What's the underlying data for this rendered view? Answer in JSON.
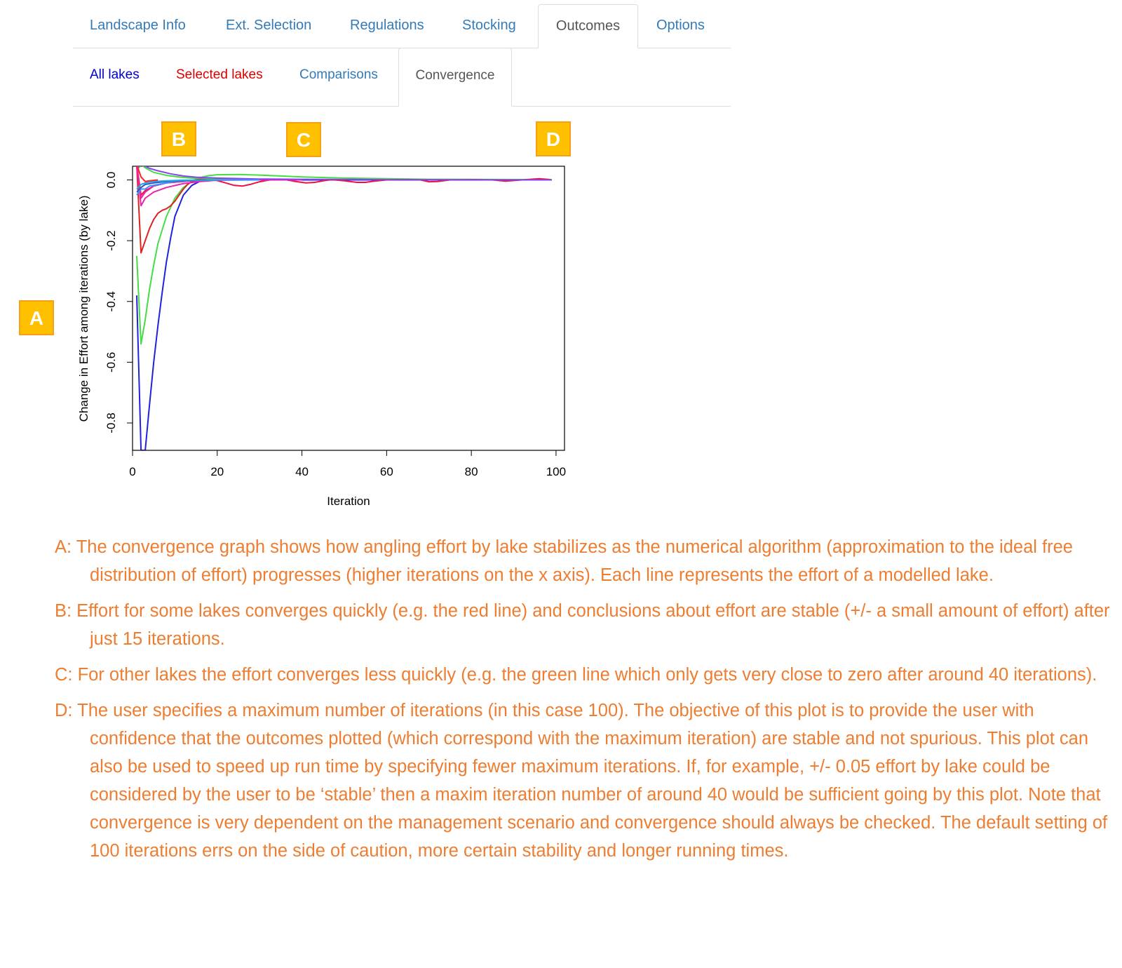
{
  "main_tabs": [
    {
      "label": "Landscape Info",
      "active": false
    },
    {
      "label": "Ext. Selection",
      "active": false
    },
    {
      "label": "Regulations",
      "active": false
    },
    {
      "label": "Stocking",
      "active": false
    },
    {
      "label": "Outcomes",
      "active": true
    },
    {
      "label": "Options",
      "active": false
    }
  ],
  "sub_tabs": [
    {
      "label": "All lakes",
      "active": false,
      "color": "#0000cc"
    },
    {
      "label": "Selected lakes",
      "active": false,
      "color": "#dd0000"
    },
    {
      "label": "Comparisons",
      "active": false,
      "color": "#337ab7"
    },
    {
      "label": "Convergence",
      "active": true,
      "color": "#555555"
    }
  ],
  "callouts": {
    "a": "A",
    "b": "B",
    "c": "C",
    "d": "D"
  },
  "colors": {
    "callout_fill": "#ffc000",
    "note_text": "#ed7d31",
    "tab_link": "#337ab7"
  },
  "chart_data": {
    "type": "line",
    "xlabel": "Iteration",
    "ylabel": "Change in Effort among iterations (by lake)",
    "xlim": [
      0,
      102
    ],
    "ylim": [
      -0.89,
      0.045
    ],
    "x_ticks": [
      "0",
      "20",
      "40",
      "60",
      "80",
      "100"
    ],
    "y_ticks": [
      "0.0",
      "-0.2",
      "-0.4",
      "-0.6",
      "-0.8"
    ],
    "grid": false,
    "series": [
      {
        "color": "#2222dd",
        "x": [
          1,
          2,
          3,
          4,
          5,
          6,
          7,
          8,
          9,
          10,
          12,
          14,
          16,
          18,
          20,
          25,
          30,
          40,
          60,
          80,
          99
        ],
        "y": [
          -0.38,
          -0.89,
          -0.89,
          -0.74,
          -0.6,
          -0.48,
          -0.37,
          -0.27,
          -0.19,
          -0.12,
          -0.05,
          -0.018,
          -0.004,
          0.002,
          0.003,
          0.002,
          0.001,
          0.0,
          0.0,
          0.0,
          0.0
        ]
      },
      {
        "color": "#44dd44",
        "x": [
          1,
          2,
          3,
          4,
          5,
          6,
          8,
          10,
          12,
          14,
          16,
          18,
          20,
          25,
          30,
          35,
          40,
          50,
          60,
          70,
          99
        ],
        "y": [
          -0.25,
          -0.54,
          -0.46,
          -0.36,
          -0.28,
          -0.21,
          -0.12,
          -0.06,
          -0.025,
          -0.005,
          0.008,
          0.014,
          0.017,
          0.018,
          0.016,
          0.013,
          0.01,
          0.006,
          0.004,
          0.002,
          0.001
        ]
      },
      {
        "color": "#44dd44",
        "x": [
          1,
          2,
          3,
          5,
          8,
          12,
          16,
          20,
          30,
          40
        ],
        "y": [
          0.03,
          0.05,
          0.04,
          0.025,
          0.015,
          0.008,
          0.004,
          0.002,
          0.001,
          0.0
        ]
      },
      {
        "color": "#dd2222",
        "x": [
          1,
          2,
          3,
          4,
          5,
          6,
          7,
          8,
          9,
          10,
          11,
          12,
          13,
          14,
          16,
          18,
          20
        ],
        "y": [
          0.05,
          -0.24,
          -0.2,
          -0.16,
          -0.13,
          -0.11,
          -0.1,
          -0.095,
          -0.085,
          -0.07,
          -0.05,
          -0.03,
          -0.015,
          -0.005,
          -0.001,
          0.0,
          0.0
        ]
      },
      {
        "color": "#ee1144",
        "x": [
          1,
          2,
          3,
          5,
          8,
          12,
          16,
          20,
          22,
          24,
          26,
          28,
          30,
          32,
          34,
          36,
          38,
          40,
          41,
          43,
          45,
          47,
          50,
          53,
          55,
          57,
          60,
          65,
          68,
          70,
          72,
          75,
          80,
          85,
          88,
          90,
          92,
          94,
          96,
          98,
          99
        ],
        "y": [
          0.05,
          -0.05,
          -0.035,
          -0.02,
          -0.01,
          -0.005,
          0.002,
          -0.002,
          -0.01,
          -0.018,
          -0.02,
          -0.014,
          -0.006,
          -0.001,
          0.002,
          0.001,
          -0.004,
          -0.008,
          -0.01,
          -0.008,
          -0.003,
          0.001,
          -0.003,
          -0.008,
          -0.008,
          -0.004,
          0.0,
          0.001,
          0.0,
          -0.006,
          -0.005,
          0.0,
          0.001,
          0.0,
          -0.004,
          -0.002,
          0.0,
          0.002,
          0.004,
          0.002,
          0.0
        ]
      },
      {
        "color": "#ee22aa",
        "x": [
          1,
          2,
          3,
          5,
          8,
          12,
          16,
          20,
          30,
          40
        ],
        "y": [
          0.05,
          -0.085,
          -0.06,
          -0.04,
          -0.025,
          -0.012,
          -0.005,
          -0.001,
          0.0,
          0.0
        ]
      },
      {
        "color": "#ee22aa",
        "x": [
          1,
          2,
          3,
          5,
          8,
          12,
          16,
          20,
          30
        ],
        "y": [
          0.04,
          -0.06,
          -0.04,
          -0.02,
          -0.01,
          -0.005,
          -0.001,
          0.0,
          0.0
        ]
      },
      {
        "color": "#8844ee",
        "x": [
          1,
          2,
          3,
          4,
          6,
          9,
          12,
          15,
          20,
          30,
          40,
          60,
          99
        ],
        "y": [
          0.04,
          0.05,
          0.045,
          0.038,
          0.03,
          0.02,
          0.013,
          0.009,
          0.006,
          0.003,
          0.002,
          0.001,
          0.0
        ]
      },
      {
        "color": "#3399ff",
        "x": [
          1,
          2,
          3,
          4,
          6,
          8,
          10,
          14,
          20,
          30
        ],
        "y": [
          -0.05,
          -0.03,
          -0.03,
          -0.02,
          -0.015,
          -0.01,
          -0.005,
          -0.002,
          0.0,
          0.0
        ]
      },
      {
        "color": "#3355cc",
        "x": [
          1,
          2,
          3,
          5,
          8,
          12,
          20
        ],
        "y": [
          -0.04,
          -0.025,
          -0.015,
          -0.01,
          -0.005,
          -0.002,
          0.0
        ]
      },
      {
        "color": "#22aadd",
        "x": [
          1,
          2,
          3,
          5,
          8,
          12,
          20
        ],
        "y": [
          -0.03,
          -0.015,
          -0.01,
          -0.005,
          -0.003,
          -0.001,
          0.0
        ]
      },
      {
        "color": "#ff2222",
        "x": [
          1,
          2,
          3,
          4,
          6
        ],
        "y": [
          0.05,
          0.01,
          -0.005,
          -0.003,
          0.0
        ]
      }
    ]
  },
  "notes": [
    {
      "text": "A: The convergence graph shows how angling effort by lake stabilizes as the numerical algorithm (approximation to the ideal free distribution of effort) progresses (higher iterations on the x axis). Each line represents the effort of a modelled lake."
    },
    {
      "text": "B: Effort for some lakes converges quickly (e.g. the red line) and conclusions about effort are stable (+/- a small amount of effort) after just 15 iterations."
    },
    {
      "text": "C: For other lakes the effort converges less quickly (e.g. the green line which only gets very close to zero after around 40 iterations)."
    },
    {
      "text": "D: The user specifies a maximum number of iterations (in this case 100). The objective of this plot is to provide the user with confidence that the outcomes plotted (which correspond with the maximum iteration) are stable and not spurious.  This plot can also be used to speed up run time by specifying fewer maximum iterations. If, for example, +/- 0.05 effort by lake could be considered by the user to be ‘stable’ then a maxim iteration number of around 40 would be sufficient going by this plot. Note that convergence is very dependent on the management scenario and convergence should always be checked. The default setting of 100 iterations errs on the side of caution, more certain stability and longer running times."
    }
  ]
}
